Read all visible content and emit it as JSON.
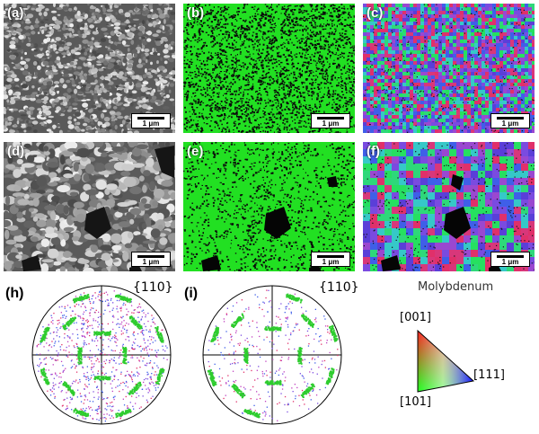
{
  "panels": [
    {
      "id": "a",
      "label": "(a)",
      "kind": "sem-fine",
      "scale_label": "1 μm"
    },
    {
      "id": "b",
      "label": "(b)",
      "kind": "ebsd-green-fine",
      "scale_label": "1 μm"
    },
    {
      "id": "c",
      "label": "(c)",
      "kind": "ebsd-ipf-fine",
      "scale_label": "1 μm"
    },
    {
      "id": "d",
      "label": "(d)",
      "kind": "sem-coarse",
      "scale_label": "1 μm"
    },
    {
      "id": "e",
      "label": "(e)",
      "kind": "ebsd-green-coarse",
      "scale_label": "1 μm"
    },
    {
      "id": "f",
      "label": "(f)",
      "kind": "ebsd-ipf-coarse",
      "scale_label": "1 μm"
    }
  ],
  "pole_figures": [
    {
      "id": "h",
      "label": "(h)",
      "title": "{110}"
    },
    {
      "id": "i",
      "label": "(i)",
      "title": "{110}"
    }
  ],
  "legend": {
    "title": "Molybdenum",
    "corners": {
      "top": "[001]",
      "right": "[111]",
      "bottom": "[101]"
    },
    "colors": {
      "001": "#ff0000",
      "101": "#00ff00",
      "111": "#0000ff"
    }
  }
}
